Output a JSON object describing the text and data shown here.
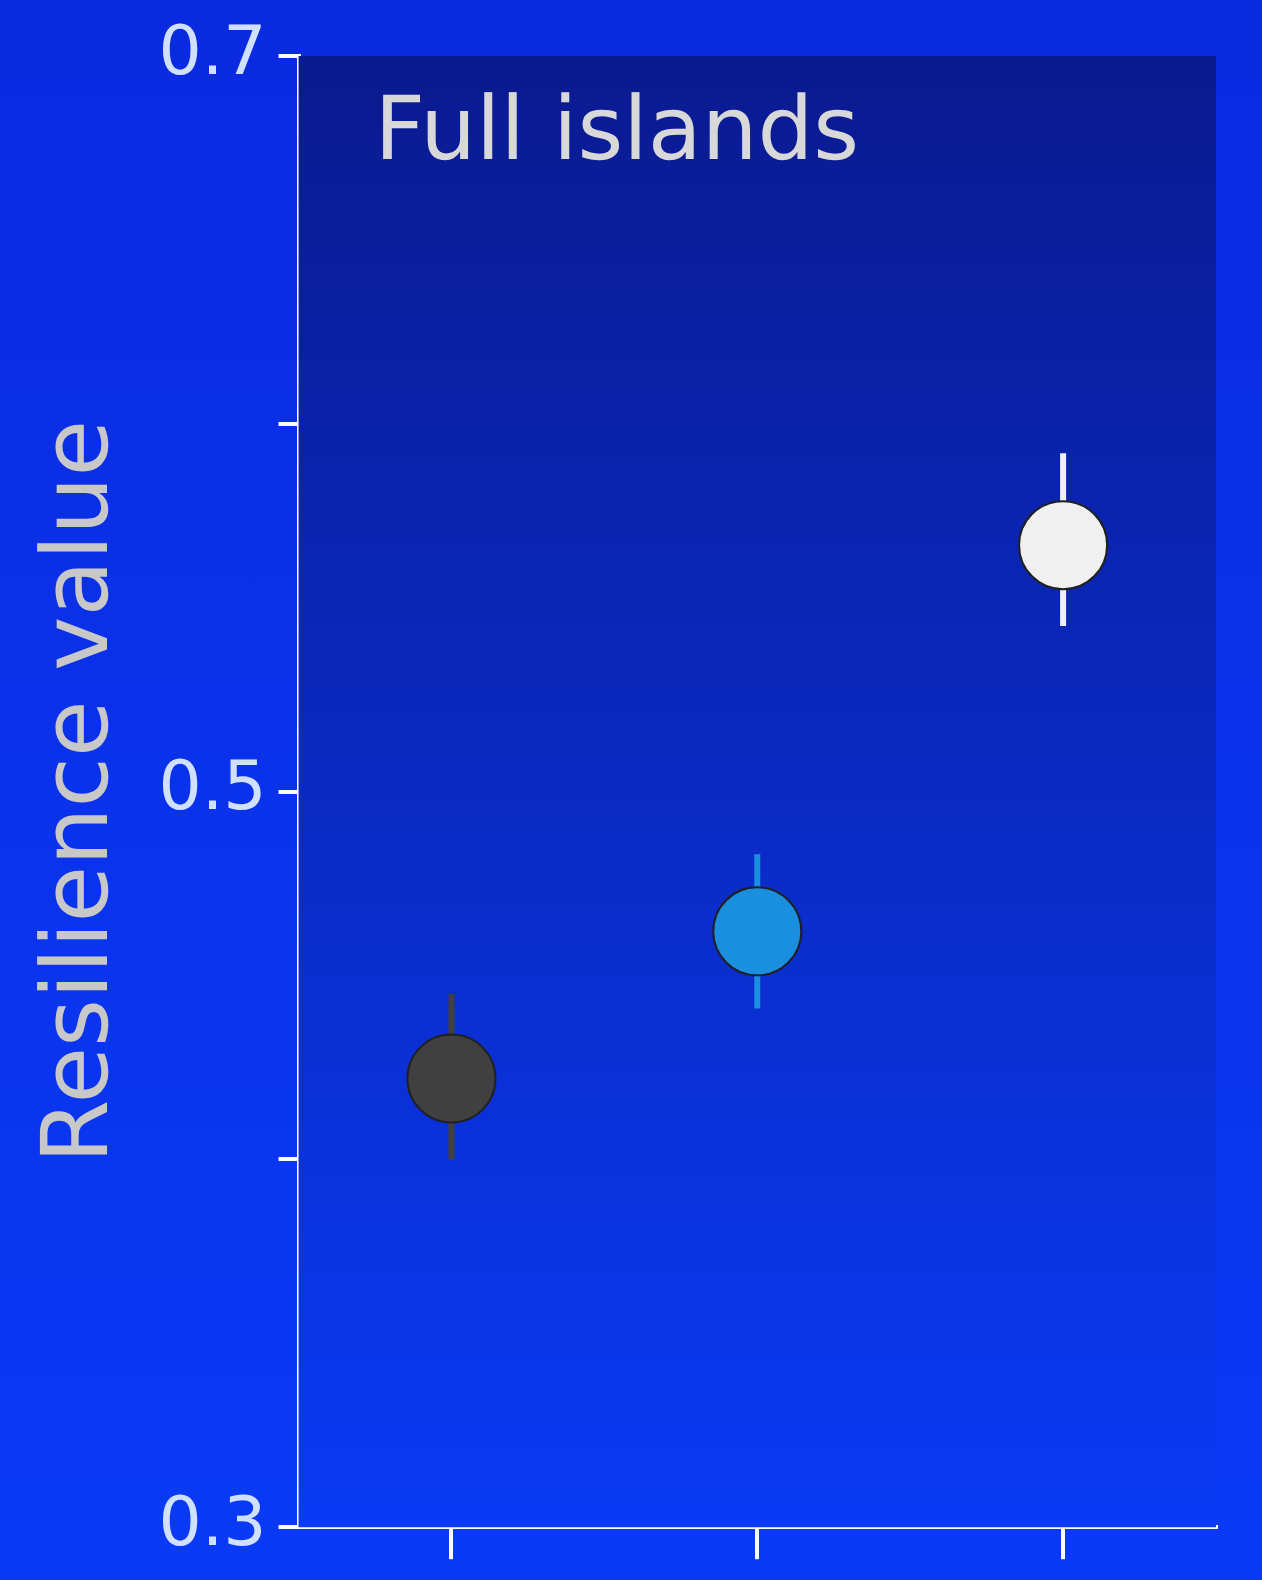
{
  "chart_data": {
    "type": "scatter",
    "ylabel": "Resilience value",
    "annotations": [
      "Full islands"
    ],
    "categories": [
      null,
      null,
      null
    ],
    "values": [
      0.422,
      0.462,
      0.567
    ],
    "colors": [
      "#404040",
      "#1a8fe0",
      "#f0f0f0"
    ],
    "errors": [
      [
        0.4,
        0.445
      ],
      [
        0.441,
        0.483
      ],
      [
        0.545,
        0.592
      ]
    ],
    "ylim": [
      0.3,
      0.7
    ],
    "yticks": [
      0.3,
      {
        "value": 0.4,
        "label": null
      },
      0.5,
      {
        "value": 0.6,
        "label": null
      },
      0.7
    ],
    "tick_labels": "y",
    "grid": false,
    "legend": false,
    "marker": "circle"
  }
}
